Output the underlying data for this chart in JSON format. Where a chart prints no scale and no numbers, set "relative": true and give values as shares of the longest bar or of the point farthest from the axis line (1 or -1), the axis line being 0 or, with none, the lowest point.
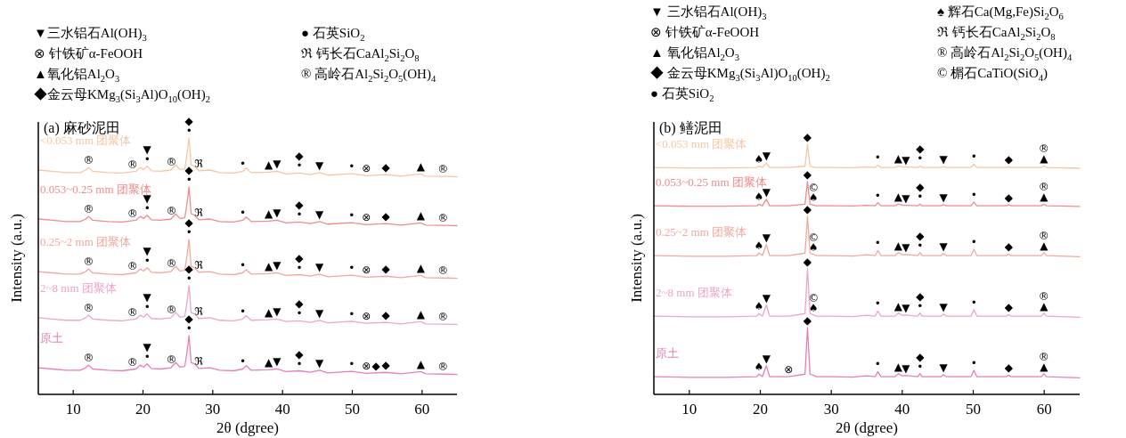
{
  "chart_data": [
    {
      "type": "line",
      "relative": true,
      "title": "(a) 麻砂泥田",
      "xlabel": "2θ (dgree)",
      "ylabel": "Intensity (a.u.)",
      "xlim": [
        5,
        65
      ],
      "xticks": [
        10,
        20,
        30,
        40,
        50,
        60
      ],
      "x": [
        5,
        7,
        9,
        11,
        11.8,
        12.2,
        12.8,
        15,
        17,
        19,
        19.6,
        20.1,
        20.6,
        21.2,
        22.5,
        24,
        24.7,
        25.3,
        26,
        26.3,
        26.6,
        26.9,
        27.4,
        28,
        29.6,
        31,
        33,
        34.3,
        34.8,
        35.5,
        38,
        39.2,
        40.5,
        42.4,
        44,
        45.3,
        46.5,
        49.9,
        52,
        54.8,
        57,
        59.8,
        60.5,
        63,
        65
      ],
      "series": [
        {
          "name": "<0.053 mm 团聚体",
          "color": "#f5c7a5",
          "values": [
            0.875,
            0.87,
            0.865,
            0.865,
            0.875,
            0.885,
            0.87,
            0.865,
            0.863,
            0.87,
            0.885,
            0.877,
            0.89,
            0.872,
            0.87,
            0.875,
            0.895,
            0.877,
            0.88,
            0.935,
            1,
            0.895,
            0.89,
            0.872,
            0.875,
            0.865,
            0.863,
            0.87,
            0.883,
            0.865,
            0.867,
            0.87,
            0.86,
            0.863,
            0.857,
            0.865,
            0.855,
            0.861,
            0.853,
            0.857,
            0.851,
            0.86,
            0.851,
            0.85,
            0.849
          ]
        },
        {
          "name": "0.053~0.25 mm 团聚体",
          "color": "#f08c8c",
          "values": [
            0.684,
            0.679,
            0.674,
            0.674,
            0.684,
            0.694,
            0.679,
            0.674,
            0.672,
            0.679,
            0.694,
            0.686,
            0.699,
            0.681,
            0.679,
            0.684,
            0.704,
            0.686,
            0.689,
            0.744,
            0.809,
            0.704,
            0.699,
            0.681,
            0.684,
            0.674,
            0.672,
            0.679,
            0.692,
            0.674,
            0.676,
            0.679,
            0.669,
            0.672,
            0.666,
            0.674,
            0.664,
            0.67,
            0.662,
            0.666,
            0.66,
            0.669,
            0.66,
            0.659,
            0.658
          ]
        },
        {
          "name": "0.25~2 mm 团聚体",
          "color": "#f4a8a0",
          "values": [
            0.479,
            0.474,
            0.469,
            0.469,
            0.479,
            0.489,
            0.474,
            0.469,
            0.467,
            0.474,
            0.489,
            0.481,
            0.494,
            0.476,
            0.474,
            0.479,
            0.499,
            0.481,
            0.484,
            0.539,
            0.604,
            0.499,
            0.494,
            0.476,
            0.479,
            0.469,
            0.467,
            0.474,
            0.487,
            0.469,
            0.471,
            0.474,
            0.464,
            0.467,
            0.461,
            0.469,
            0.459,
            0.465,
            0.457,
            0.461,
            0.455,
            0.464,
            0.455,
            0.454,
            0.453
          ]
        },
        {
          "name": "2~8 mm 团聚体",
          "color": "#eea5c8",
          "values": [
            0.299,
            0.294,
            0.289,
            0.289,
            0.299,
            0.309,
            0.294,
            0.289,
            0.287,
            0.294,
            0.309,
            0.301,
            0.314,
            0.296,
            0.294,
            0.299,
            0.319,
            0.301,
            0.304,
            0.359,
            0.424,
            0.319,
            0.314,
            0.296,
            0.299,
            0.289,
            0.287,
            0.294,
            0.307,
            0.289,
            0.291,
            0.294,
            0.284,
            0.287,
            0.281,
            0.289,
            0.279,
            0.285,
            0.277,
            0.281,
            0.275,
            0.284,
            0.275,
            0.274,
            0.273
          ]
        },
        {
          "name": "原土",
          "color": "#e87fb5",
          "values": [
            0.104,
            0.099,
            0.094,
            0.094,
            0.104,
            0.114,
            0.099,
            0.094,
            0.092,
            0.099,
            0.114,
            0.106,
            0.119,
            0.101,
            0.099,
            0.104,
            0.124,
            0.106,
            0.109,
            0.164,
            0.229,
            0.124,
            0.119,
            0.101,
            0.104,
            0.094,
            0.092,
            0.099,
            0.112,
            0.094,
            0.096,
            0.099,
            0.089,
            0.092,
            0.086,
            0.094,
            0.084,
            0.09,
            0.082,
            0.086,
            0.08,
            0.089,
            0.08,
            0.079,
            0.078
          ]
        }
      ],
      "annotations": [
        "▼三水铝石Al(OH)$_{3}$",
        "⊗ 针铁矿α-FeOOH",
        "▲氧化铝Al$_{2}$O$_{3}$",
        "◆金云母KMg$_{3}$(Si$_{3}$Al)O$_{10}$(OH)$_{2}$",
        "● 石英SiO$_{2}$",
        "ℜ 钙长石CaAl$_{2}$Si$_{2}$O$_{8}$",
        "® 高岭石Al$_{2}$Si$_{2}$O$_{5}$(OH)$_{4}$",
        {
          "text": "®",
          "x": 12.2,
          "y": 0.885
        },
        {
          "text": "®",
          "x": 18.5,
          "y": 0.868
        },
        {
          "text": "•",
          "x": 20.6,
          "y": 0.89
        },
        {
          "text": "▼",
          "x": 20.6,
          "y": 0.89
        },
        {
          "text": "®",
          "x": 24.1,
          "y": 0.878
        },
        {
          "text": "•",
          "x": 26.6,
          "y": 1
        },
        {
          "text": "◆",
          "x": 26.6,
          "y": 1
        },
        {
          "text": "ℜ",
          "x": 28,
          "y": 0.872
        },
        {
          "text": "•",
          "x": 34.3,
          "y": 0.87
        },
        {
          "text": "▲",
          "x": 38,
          "y": 0.867
        },
        {
          "text": "▼",
          "x": 39.2,
          "y": 0.87
        },
        {
          "text": "•",
          "x": 42.4,
          "y": 0.863
        },
        {
          "text": "◆",
          "x": 42.4,
          "y": 0.863
        },
        {
          "text": "▼",
          "x": 45.3,
          "y": 0.865
        },
        {
          "text": "•",
          "x": 49.9,
          "y": 0.861
        },
        {
          "text": "⊗",
          "x": 52,
          "y": 0.853
        },
        {
          "text": "◆",
          "x": 54.8,
          "y": 0.857
        },
        {
          "text": "▲",
          "x": 59.8,
          "y": 0.86
        },
        {
          "text": "®",
          "x": 63,
          "y": 0.85
        },
        {
          "text": "®",
          "x": 12.2,
          "y": 0.694
        },
        {
          "text": "®",
          "x": 18.5,
          "y": 0.677
        },
        {
          "text": "•",
          "x": 20.6,
          "y": 0.699
        },
        {
          "text": "▼",
          "x": 20.6,
          "y": 0.699
        },
        {
          "text": "®",
          "x": 24.1,
          "y": 0.687
        },
        {
          "text": "•",
          "x": 26.6,
          "y": 0.809
        },
        {
          "text": "◆",
          "x": 26.6,
          "y": 0.809
        },
        {
          "text": "ℜ",
          "x": 28,
          "y": 0.681
        },
        {
          "text": "•",
          "x": 34.3,
          "y": 0.679
        },
        {
          "text": "▲",
          "x": 38,
          "y": 0.676
        },
        {
          "text": "▼",
          "x": 39.2,
          "y": 0.679
        },
        {
          "text": "•",
          "x": 42.4,
          "y": 0.672
        },
        {
          "text": "◆",
          "x": 42.4,
          "y": 0.672
        },
        {
          "text": "▼",
          "x": 45.3,
          "y": 0.674
        },
        {
          "text": "•",
          "x": 49.9,
          "y": 0.67
        },
        {
          "text": "⊗",
          "x": 52,
          "y": 0.662
        },
        {
          "text": "◆",
          "x": 54.8,
          "y": 0.666
        },
        {
          "text": "▲",
          "x": 59.8,
          "y": 0.669
        },
        {
          "text": "®",
          "x": 63,
          "y": 0.659
        },
        {
          "text": "®",
          "x": 12.2,
          "y": 0.489
        },
        {
          "text": "®",
          "x": 18.5,
          "y": 0.472
        },
        {
          "text": "•",
          "x": 20.6,
          "y": 0.494
        },
        {
          "text": "▼",
          "x": 20.6,
          "y": 0.494
        },
        {
          "text": "®",
          "x": 24.1,
          "y": 0.482
        },
        {
          "text": "•",
          "x": 26.6,
          "y": 0.604
        },
        {
          "text": "◆",
          "x": 26.6,
          "y": 0.604
        },
        {
          "text": "ℜ",
          "x": 28,
          "y": 0.476
        },
        {
          "text": "•",
          "x": 34.3,
          "y": 0.474
        },
        {
          "text": "▲",
          "x": 38,
          "y": 0.471
        },
        {
          "text": "▼",
          "x": 39.2,
          "y": 0.474
        },
        {
          "text": "•",
          "x": 42.4,
          "y": 0.467
        },
        {
          "text": "◆",
          "x": 42.4,
          "y": 0.467
        },
        {
          "text": "▼",
          "x": 45.3,
          "y": 0.469
        },
        {
          "text": "•",
          "x": 49.9,
          "y": 0.465
        },
        {
          "text": "⊗",
          "x": 52,
          "y": 0.457
        },
        {
          "text": "◆",
          "x": 54.8,
          "y": 0.461
        },
        {
          "text": "▲",
          "x": 59.8,
          "y": 0.464
        },
        {
          "text": "®",
          "x": 63,
          "y": 0.454
        },
        {
          "text": "®",
          "x": 12.2,
          "y": 0.309
        },
        {
          "text": "®",
          "x": 18.5,
          "y": 0.292
        },
        {
          "text": "•",
          "x": 20.6,
          "y": 0.314
        },
        {
          "text": "▼",
          "x": 20.6,
          "y": 0.314
        },
        {
          "text": "®",
          "x": 24.1,
          "y": 0.302
        },
        {
          "text": "•",
          "x": 26.6,
          "y": 0.424
        },
        {
          "text": "◆",
          "x": 26.6,
          "y": 0.424
        },
        {
          "text": "ℜ",
          "x": 28,
          "y": 0.296
        },
        {
          "text": "•",
          "x": 34.3,
          "y": 0.294
        },
        {
          "text": "▲",
          "x": 38,
          "y": 0.291
        },
        {
          "text": "▼",
          "x": 39.2,
          "y": 0.294
        },
        {
          "text": "•",
          "x": 42.4,
          "y": 0.287
        },
        {
          "text": "◆",
          "x": 42.4,
          "y": 0.287
        },
        {
          "text": "▼",
          "x": 45.3,
          "y": 0.289
        },
        {
          "text": "•",
          "x": 49.9,
          "y": 0.285
        },
        {
          "text": "⊗",
          "x": 52,
          "y": 0.277
        },
        {
          "text": "◆",
          "x": 54.8,
          "y": 0.281
        },
        {
          "text": "▲",
          "x": 59.8,
          "y": 0.284
        },
        {
          "text": "®",
          "x": 63,
          "y": 0.274
        },
        {
          "text": "®",
          "x": 12.2,
          "y": 0.114
        },
        {
          "text": "®",
          "x": 18.5,
          "y": 0.097
        },
        {
          "text": "•",
          "x": 20.6,
          "y": 0.119
        },
        {
          "text": "▼",
          "x": 20.6,
          "y": 0.119
        },
        {
          "text": "®",
          "x": 24.1,
          "y": 0.107
        },
        {
          "text": "•",
          "x": 26.6,
          "y": 0.229
        },
        {
          "text": "◆",
          "x": 26.6,
          "y": 0.229
        },
        {
          "text": "ℜ",
          "x": 28,
          "y": 0.101
        },
        {
          "text": "•",
          "x": 34.3,
          "y": 0.099
        },
        {
          "text": "▲",
          "x": 38,
          "y": 0.096
        },
        {
          "text": "▼",
          "x": 39.2,
          "y": 0.099
        },
        {
          "text": "•",
          "x": 42.4,
          "y": 0.092
        },
        {
          "text": "◆",
          "x": 42.4,
          "y": 0.092
        },
        {
          "text": "▼",
          "x": 45.3,
          "y": 0.094
        },
        {
          "text": "•",
          "x": 49.9,
          "y": 0.09
        },
        {
          "text": "⊗",
          "x": 52,
          "y": 0.082
        },
        {
          "text": "◆",
          "x": 53.4,
          "y": 0.084
        },
        {
          "text": "◆",
          "x": 54.8,
          "y": 0.086
        },
        {
          "text": "▲",
          "x": 59.8,
          "y": 0.089
        },
        {
          "text": "®",
          "x": 63,
          "y": 0.079
        }
      ]
    },
    {
      "type": "line",
      "relative": true,
      "title": "(b) 鳝泥田",
      "xlabel": "2θ (dgree)",
      "ylabel": "Intensity (a.u.)",
      "xlim": [
        5,
        65
      ],
      "xticks": [
        10,
        20,
        30,
        40,
        50,
        60
      ],
      "x": [
        5,
        10,
        15,
        19.5,
        19.8,
        20.3,
        20.85,
        21.3,
        24,
        26.3,
        26.65,
        27,
        27.5,
        27.9,
        30,
        33,
        35,
        36.2,
        36.55,
        37,
        39,
        39.45,
        40,
        40.5,
        42.2,
        42.5,
        42.8,
        45.5,
        45.8,
        46.2,
        49.7,
        50.1,
        50.5,
        54.7,
        55,
        55.3,
        59.6,
        59.95,
        60.3,
        65
      ],
      "series": [
        {
          "name": "<0.053 mm 团聚体",
          "color": "#f5c7a5",
          "values": [
            0.907,
            0.905,
            0.905,
            0.907,
            0.912,
            0.907,
            0.925,
            0.907,
            0.907,
            0.912,
            1,
            0.912,
            0.909,
            0.907,
            0.907,
            0.906,
            0.909,
            0.907,
            0.917,
            0.907,
            0.907,
            0.913,
            0.909,
            0.909,
            0.907,
            0.913,
            0.907,
            0.907,
            0.911,
            0.907,
            0.907,
            0.92,
            0.907,
            0.907,
            0.91,
            0.907,
            0.907,
            0.913,
            0.907,
            0.904
          ]
        },
        {
          "name": "0.053~0.25 mm 团聚体",
          "color": "#f08c8c",
          "values": [
            0.754,
            0.752,
            0.752,
            0.754,
            0.76,
            0.754,
            0.78,
            0.754,
            0.754,
            0.76,
            0.851,
            0.76,
            0.757,
            0.754,
            0.754,
            0.753,
            0.756,
            0.754,
            0.766,
            0.754,
            0.754,
            0.761,
            0.756,
            0.756,
            0.754,
            0.761,
            0.754,
            0.754,
            0.759,
            0.754,
            0.754,
            0.769,
            0.754,
            0.754,
            0.758,
            0.754,
            0.754,
            0.761,
            0.754,
            0.751
          ]
        },
        {
          "name": "0.25~2 mm 团聚体",
          "color": "#f4a8a0",
          "values": [
            0.555,
            0.552,
            0.552,
            0.555,
            0.565,
            0.555,
            0.599,
            0.555,
            0.555,
            0.565,
            0.712,
            0.565,
            0.56,
            0.555,
            0.555,
            0.553,
            0.558,
            0.555,
            0.575,
            0.555,
            0.555,
            0.567,
            0.558,
            0.559,
            0.555,
            0.567,
            0.555,
            0.555,
            0.563,
            0.555,
            0.555,
            0.58,
            0.555,
            0.555,
            0.561,
            0.555,
            0.555,
            0.567,
            0.555,
            0.55
          ]
        },
        {
          "name": "2~8 mm 团聚体",
          "color": "#eea5c8",
          "values": [
            0.313,
            0.31,
            0.31,
            0.313,
            0.323,
            0.313,
            0.357,
            0.313,
            0.313,
            0.323,
            0.502,
            0.323,
            0.318,
            0.313,
            0.313,
            0.311,
            0.316,
            0.313,
            0.333,
            0.313,
            0.313,
            0.325,
            0.316,
            0.317,
            0.313,
            0.325,
            0.313,
            0.313,
            0.321,
            0.313,
            0.313,
            0.338,
            0.313,
            0.313,
            0.319,
            0.313,
            0.313,
            0.325,
            0.313,
            0.308
          ]
        },
        {
          "name": "原土",
          "color": "#e87fb5",
          "values": [
            0.071,
            0.068,
            0.068,
            0.071,
            0.081,
            0.071,
            0.115,
            0.071,
            0.071,
            0.081,
            0.267,
            0.081,
            0.076,
            0.071,
            0.071,
            0.069,
            0.074,
            0.071,
            0.091,
            0.071,
            0.071,
            0.083,
            0.074,
            0.075,
            0.071,
            0.083,
            0.071,
            0.071,
            0.079,
            0.071,
            0.071,
            0.096,
            0.071,
            0.071,
            0.077,
            0.071,
            0.071,
            0.083,
            0.071,
            0.066
          ]
        }
      ],
      "annotations": [
        "▼ 三水铝石Al(OH)$_{3}$",
        "⊗ 针铁矿α-FeOOH",
        "▲ 氧化铝Al$_{2}$O$_{3}$",
        "◆ 金云母KMg$_{3}$(Si$_{3}$Al)O$_{10}$(OH)$_{2}$",
        "● 石英SiO$_{2}$",
        "♠ 辉石Ca(Mg,Fe)Si$_{2}$O$_{6}$",
        "ℜ 钙长石CaAl$_{2}$Si$_{2}$O$_{8}$",
        "® 高岭石Al$_{2}$Si$_{2}$O$_{5}$(OH)$_{4}$",
        "© 榍石CaTiO(SiO$_{4}$)",
        {
          "text": "♠",
          "x": 19.8,
          "y": 0.912
        },
        {
          "text": "▼",
          "x": 20.85,
          "y": 0.925
        },
        {
          "text": "◆",
          "x": 26.65,
          "y": 1
        },
        {
          "text": "•",
          "x": 36.55,
          "y": 0.917
        },
        {
          "text": "▲",
          "x": 39.45,
          "y": 0.913
        },
        {
          "text": "▼",
          "x": 40.5,
          "y": 0.909
        },
        {
          "text": "•",
          "x": 42.5,
          "y": 0.913
        },
        {
          "text": "◆",
          "x": 42.5,
          "y": 0.913
        },
        {
          "text": "▼",
          "x": 45.8,
          "y": 0.911
        },
        {
          "text": "•",
          "x": 50.1,
          "y": 0.92
        },
        {
          "text": "◆",
          "x": 55,
          "y": 0.91
        },
        {
          "text": "▲",
          "x": 59.95,
          "y": 0.913
        },
        {
          "text": "®",
          "x": 59.95,
          "y": 0.913
        },
        {
          "text": "♠",
          "x": 19.8,
          "y": 0.76
        },
        {
          "text": "▼",
          "x": 20.85,
          "y": 0.78
        },
        {
          "text": "◆",
          "x": 26.65,
          "y": 0.851
        },
        {
          "text": "♠",
          "x": 27.5,
          "y": 0.757
        },
        {
          "text": "©",
          "x": 27.5,
          "y": 0.757
        },
        {
          "text": "•",
          "x": 36.55,
          "y": 0.766
        },
        {
          "text": "▲",
          "x": 39.45,
          "y": 0.761
        },
        {
          "text": "▼",
          "x": 40.5,
          "y": 0.756
        },
        {
          "text": "•",
          "x": 42.5,
          "y": 0.761
        },
        {
          "text": "◆",
          "x": 42.5,
          "y": 0.761
        },
        {
          "text": "▼",
          "x": 45.8,
          "y": 0.759
        },
        {
          "text": "•",
          "x": 50.1,
          "y": 0.769
        },
        {
          "text": "◆",
          "x": 55,
          "y": 0.758
        },
        {
          "text": "▲",
          "x": 59.95,
          "y": 0.761
        },
        {
          "text": "®",
          "x": 59.95,
          "y": 0.761
        },
        {
          "text": "♠",
          "x": 19.8,
          "y": 0.565
        },
        {
          "text": "▼",
          "x": 20.85,
          "y": 0.599
        },
        {
          "text": "◆",
          "x": 26.65,
          "y": 0.712
        },
        {
          "text": "♠",
          "x": 27.5,
          "y": 0.56
        },
        {
          "text": "©",
          "x": 27.5,
          "y": 0.56
        },
        {
          "text": "•",
          "x": 36.55,
          "y": 0.575
        },
        {
          "text": "▲",
          "x": 39.45,
          "y": 0.567
        },
        {
          "text": "▼",
          "x": 40.5,
          "y": 0.559
        },
        {
          "text": "•",
          "x": 42.5,
          "y": 0.567
        },
        {
          "text": "◆",
          "x": 42.5,
          "y": 0.567
        },
        {
          "text": "▼",
          "x": 45.8,
          "y": 0.563
        },
        {
          "text": "•",
          "x": 50.1,
          "y": 0.58
        },
        {
          "text": "◆",
          "x": 55,
          "y": 0.561
        },
        {
          "text": "▲",
          "x": 59.95,
          "y": 0.567
        },
        {
          "text": "®",
          "x": 59.95,
          "y": 0.567
        },
        {
          "text": "♠",
          "x": 19.8,
          "y": 0.323
        },
        {
          "text": "▼",
          "x": 20.85,
          "y": 0.357
        },
        {
          "text": "◆",
          "x": 26.65,
          "y": 0.502
        },
        {
          "text": "♠",
          "x": 27.5,
          "y": 0.318
        },
        {
          "text": "©",
          "x": 27.5,
          "y": 0.318
        },
        {
          "text": "•",
          "x": 36.55,
          "y": 0.333
        },
        {
          "text": "▲",
          "x": 39.45,
          "y": 0.325
        },
        {
          "text": "▼",
          "x": 40.5,
          "y": 0.317
        },
        {
          "text": "•",
          "x": 42.5,
          "y": 0.325
        },
        {
          "text": "◆",
          "x": 42.5,
          "y": 0.325
        },
        {
          "text": "▼",
          "x": 45.8,
          "y": 0.321
        },
        {
          "text": "•",
          "x": 50.1,
          "y": 0.338
        },
        {
          "text": "◆",
          "x": 55,
          "y": 0.319
        },
        {
          "text": "▲",
          "x": 59.95,
          "y": 0.325
        },
        {
          "text": "®",
          "x": 59.95,
          "y": 0.325
        },
        {
          "text": "♠",
          "x": 19.8,
          "y": 0.081
        },
        {
          "text": "▼",
          "x": 20.85,
          "y": 0.115
        },
        {
          "text": "⊗",
          "x": 24,
          "y": 0.071
        },
        {
          "text": "◆",
          "x": 26.65,
          "y": 0.267
        },
        {
          "text": "•",
          "x": 36.55,
          "y": 0.091
        },
        {
          "text": "▲",
          "x": 39.45,
          "y": 0.083
        },
        {
          "text": "▼",
          "x": 40.5,
          "y": 0.075
        },
        {
          "text": "•",
          "x": 42.5,
          "y": 0.083
        },
        {
          "text": "◆",
          "x": 42.5,
          "y": 0.083
        },
        {
          "text": "▼",
          "x": 45.8,
          "y": 0.079
        },
        {
          "text": "•",
          "x": 50.1,
          "y": 0.096
        },
        {
          "text": "◆",
          "x": 55,
          "y": 0.077
        },
        {
          "text": "▲",
          "x": 59.95,
          "y": 0.083
        },
        {
          "text": "®",
          "x": 59.95,
          "y": 0.083
        }
      ]
    }
  ]
}
